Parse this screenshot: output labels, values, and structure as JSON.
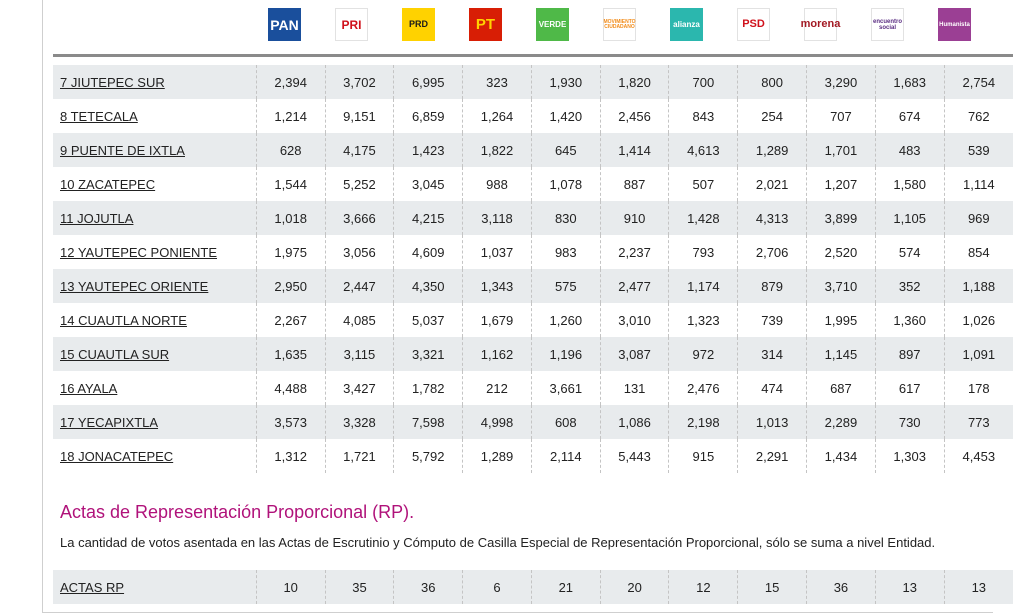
{
  "parties": [
    {
      "name": "PAN",
      "label": "PAN",
      "bg": "#1a4f9c",
      "fg": "#ffffff"
    },
    {
      "name": "PRI",
      "label": "PRI",
      "bg": "#ffffff",
      "fg": "#d0111b"
    },
    {
      "name": "PRD",
      "label": "PRD",
      "bg": "#ffd200",
      "fg": "#1a1a1a"
    },
    {
      "name": "PT",
      "label": "PT",
      "bg": "#d81e05",
      "fg": "#ffd200"
    },
    {
      "name": "VERDE",
      "label": "VERDE",
      "bg": "#4fb948",
      "fg": "#ffffff"
    },
    {
      "name": "MOVIMIENTO CIUDADANO",
      "label": "MOVIMIENTO CIUDADANO",
      "bg": "#ffffff",
      "fg": "#f28c1a"
    },
    {
      "name": "alianza",
      "label": "alianza",
      "bg": "#2bb7ae",
      "fg": "#ffffff"
    },
    {
      "name": "PSD",
      "label": "PSD",
      "bg": "#ffffff",
      "fg": "#d0111b"
    },
    {
      "name": "morena",
      "label": "morena",
      "bg": "#ffffff",
      "fg": "#a31a24"
    },
    {
      "name": "encuentro social",
      "label": "encuentro social",
      "bg": "#ffffff",
      "fg": "#5a2d82"
    },
    {
      "name": "Humanista",
      "label": "Humanista",
      "bg": "#9b3f94",
      "fg": "#ffffff"
    }
  ],
  "rows": [
    {
      "district": "7 JIUTEPEC SUR",
      "values": [
        "2,394",
        "3,702",
        "6,995",
        "323",
        "1,930",
        "1,820",
        "700",
        "800",
        "3,290",
        "1,683",
        "2,754"
      ]
    },
    {
      "district": "8 TETECALA",
      "values": [
        "1,214",
        "9,151",
        "6,859",
        "1,264",
        "1,420",
        "2,456",
        "843",
        "254",
        "707",
        "674",
        "762"
      ]
    },
    {
      "district": "9 PUENTE DE IXTLA",
      "values": [
        "628",
        "4,175",
        "1,423",
        "1,822",
        "645",
        "1,414",
        "4,613",
        "1,289",
        "1,701",
        "483",
        "539"
      ]
    },
    {
      "district": "10 ZACATEPEC",
      "values": [
        "1,544",
        "5,252",
        "3,045",
        "988",
        "1,078",
        "887",
        "507",
        "2,021",
        "1,207",
        "1,580",
        "1,114"
      ]
    },
    {
      "district": "11 JOJUTLA",
      "values": [
        "1,018",
        "3,666",
        "4,215",
        "3,118",
        "830",
        "910",
        "1,428",
        "4,313",
        "3,899",
        "1,105",
        "969"
      ]
    },
    {
      "district": "12 YAUTEPEC PONIENTE",
      "values": [
        "1,975",
        "3,056",
        "4,609",
        "1,037",
        "983",
        "2,237",
        "793",
        "2,706",
        "2,520",
        "574",
        "854"
      ]
    },
    {
      "district": "13 YAUTEPEC ORIENTE",
      "values": [
        "2,950",
        "2,447",
        "4,350",
        "1,343",
        "575",
        "2,477",
        "1,174",
        "879",
        "3,710",
        "352",
        "1,188"
      ]
    },
    {
      "district": "14 CUAUTLA NORTE",
      "values": [
        "2,267",
        "4,085",
        "5,037",
        "1,679",
        "1,260",
        "3,010",
        "1,323",
        "739",
        "1,995",
        "1,360",
        "1,026"
      ]
    },
    {
      "district": "15 CUAUTLA SUR",
      "values": [
        "1,635",
        "3,115",
        "3,321",
        "1,162",
        "1,196",
        "3,087",
        "972",
        "314",
        "1,145",
        "897",
        "1,091"
      ]
    },
    {
      "district": "16 AYALA",
      "values": [
        "4,488",
        "3,427",
        "1,782",
        "212",
        "3,661",
        "131",
        "2,476",
        "474",
        "687",
        "617",
        "178"
      ]
    },
    {
      "district": "17 YECAPIXTLA",
      "values": [
        "3,573",
        "3,328",
        "7,598",
        "4,998",
        "608",
        "1,086",
        "2,198",
        "1,013",
        "2,289",
        "730",
        "773"
      ]
    },
    {
      "district": "18 JONACATEPEC",
      "values": [
        "1,312",
        "1,721",
        "5,792",
        "1,289",
        "2,114",
        "5,443",
        "915",
        "2,291",
        "1,434",
        "1,303",
        "4,453"
      ]
    }
  ],
  "rp": {
    "title": "Actas de Representación Proporcional (RP).",
    "description": "La cantidad de votos asentada en las Actas de Escrutinio y Cómputo de Casilla Especial de Representación Proporcional, sólo se suma a nivel Entidad.",
    "row": {
      "label": "ACTAS RP",
      "values": [
        "10",
        "35",
        "36",
        "6",
        "21",
        "20",
        "12",
        "15",
        "36",
        "13",
        "13"
      ]
    }
  }
}
